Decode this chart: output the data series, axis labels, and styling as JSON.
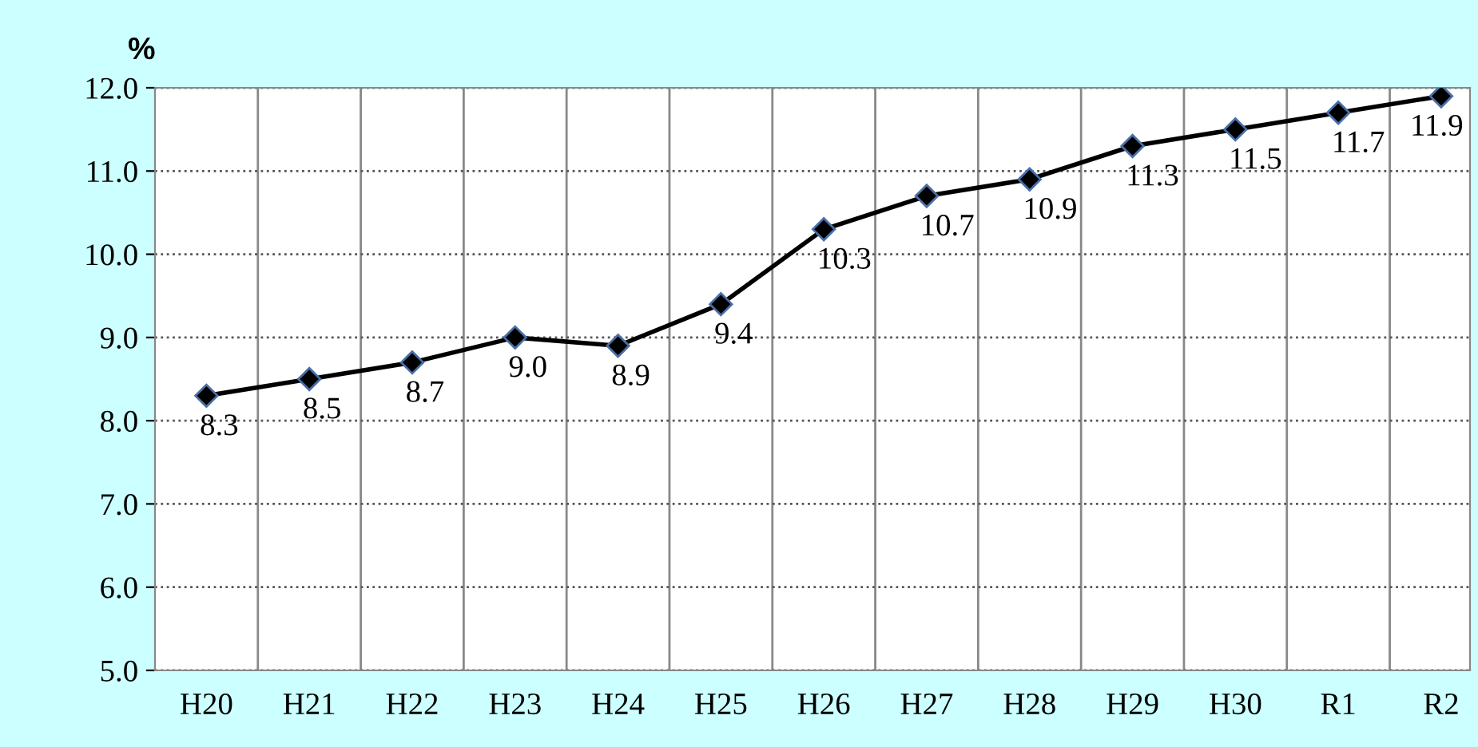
{
  "chart_data": {
    "type": "line",
    "ylabel": "%",
    "categories": [
      "H20",
      "H21",
      "H22",
      "H23",
      "H24",
      "H25",
      "H26",
      "H27",
      "H28",
      "H29",
      "H30",
      "R1",
      "R2"
    ],
    "series": [
      {
        "color": "#000000",
        "values": [
          8.3,
          8.5,
          8.7,
          9.0,
          8.9,
          9.4,
          10.3,
          10.7,
          10.9,
          11.3,
          11.5,
          11.7,
          11.9
        ],
        "value_labels": [
          "8.3",
          "8.5",
          "8.7",
          "9.0",
          "8.9",
          "9.4",
          "10.3",
          "10.7",
          "10.9",
          "11.3",
          "11.5",
          "11.7",
          "11.9"
        ]
      }
    ],
    "ylim": [
      5,
      12
    ],
    "yticks": [
      {
        "value": 5,
        "label": "5.0"
      },
      {
        "value": 6,
        "label": "6.0"
      },
      {
        "value": 7,
        "label": "7.0"
      },
      {
        "value": 8,
        "label": "8.0"
      },
      {
        "value": 9,
        "label": "9.0"
      },
      {
        "value": 10,
        "label": "10.0"
      },
      {
        "value": 11,
        "label": "11.0"
      },
      {
        "value": 12,
        "label": "12.0"
      }
    ],
    "grid": "y",
    "marker": "diamond",
    "line_style": "solid",
    "legend": false
  }
}
